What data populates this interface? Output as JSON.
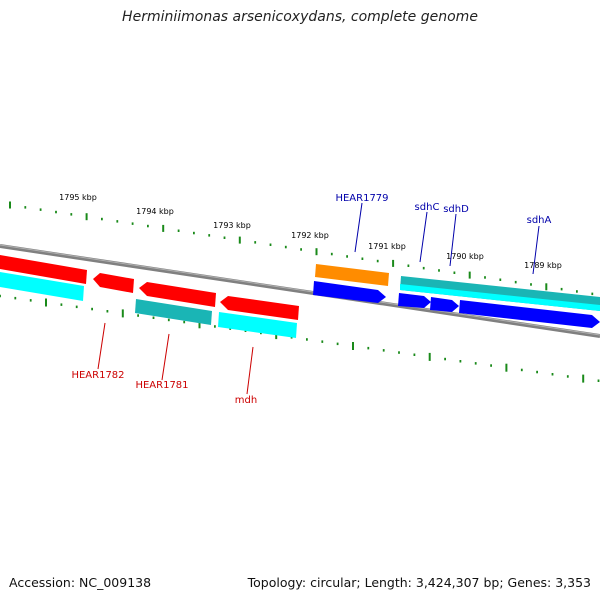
{
  "title": "Herminiimonas arsenicoxydans, complete genome",
  "footer": {
    "accession": "Accession: NC_009138",
    "topology": "Topology: circular; Length: 3,424,307 bp; Genes: 3,353"
  },
  "colors": {
    "backbone": "#808080",
    "tick": "#1a8a1a",
    "red": "#ff0000",
    "cyan": "#00ffff",
    "teal": "#1ab5b5",
    "blue": "#0000ff",
    "orange": "#ff8c00",
    "label_red": "#cc0000",
    "label_blue": "#0000aa"
  },
  "ruler": [
    {
      "label": "1795 kbp"
    },
    {
      "label": "1794 kbp"
    },
    {
      "label": "1793 kbp"
    },
    {
      "label": "1792 kbp"
    },
    {
      "label": "1791 kbp"
    },
    {
      "label": "1790 kbp"
    },
    {
      "label": "1789 kbp"
    }
  ],
  "genes": [
    {
      "label": "HEAR1782"
    },
    {
      "label": "HEAR1781"
    },
    {
      "label": "mdh"
    },
    {
      "label": "HEAR1779"
    },
    {
      "label": "sdhC"
    },
    {
      "label": "sdhD"
    },
    {
      "label": "sdhA"
    }
  ]
}
